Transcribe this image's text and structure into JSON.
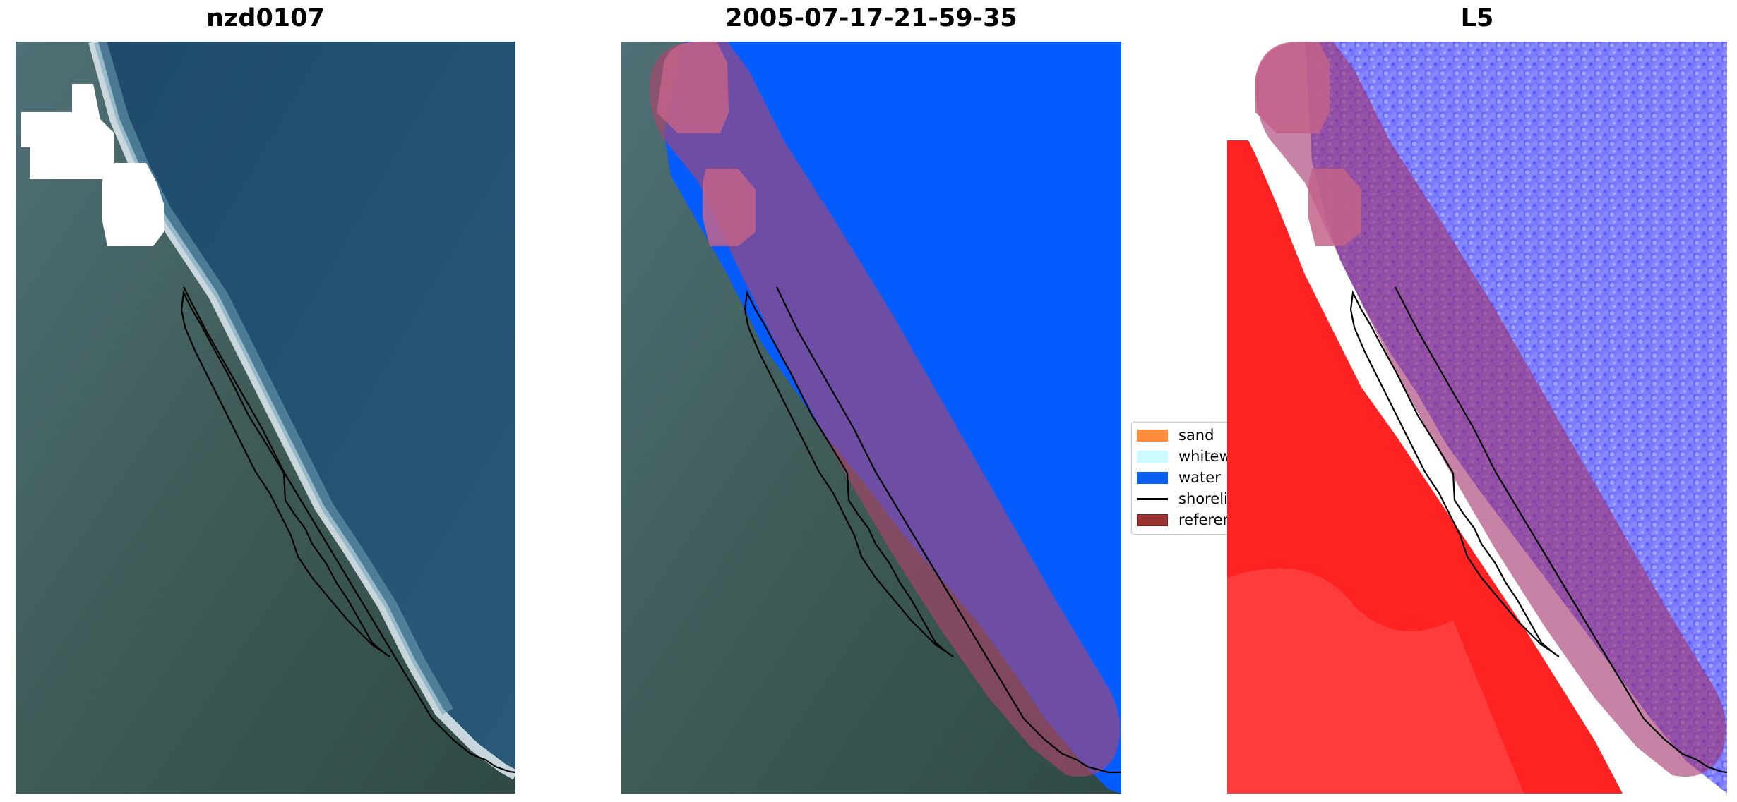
{
  "panels": [
    {
      "title": "nzd0107"
    },
    {
      "title": "2005-07-17-21-59-35"
    },
    {
      "title": "L5"
    }
  ],
  "legend": {
    "items": [
      {
        "label": "sand",
        "color": "#ff8c3a",
        "kind": "patch"
      },
      {
        "label": "whitew",
        "color": "#ccfbff",
        "kind": "patch"
      },
      {
        "label": "water",
        "color": "#0a5ef0",
        "kind": "patch"
      },
      {
        "label": "shoreli",
        "color": "#000000",
        "kind": "line"
      },
      {
        "label": "referen",
        "color": "#9b3232",
        "kind": "patch"
      }
    ]
  },
  "colors": {
    "water_class": "#045cff",
    "reference_buffer": "#b0446c",
    "land_index": "#ff2020",
    "water_index": "#3b3bff"
  }
}
